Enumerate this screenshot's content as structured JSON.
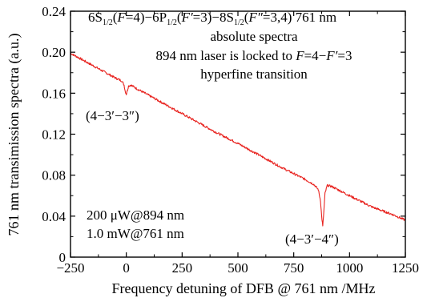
{
  "chart_data": {
    "type": "line",
    "xlabel": "Frequency detuning of DFB @ 761 nm /MHz",
    "ylabel": "761 nm transimission spectra (a.u.)",
    "xlim": [
      -250,
      1250
    ],
    "ylim": [
      0,
      0.24
    ],
    "x_ticks": [
      -250,
      0,
      250,
      500,
      750,
      1000,
      1250
    ],
    "y_ticks": [
      0,
      0.04,
      0.08,
      0.12,
      0.16,
      0.2,
      0.24
    ],
    "x_tick_labels": [
      "−250",
      "0",
      "250",
      "500",
      "750",
      "1000",
      "1250"
    ],
    "y_tick_labels": [
      "0",
      "0.04",
      "0.08",
      "0.12",
      "0.16",
      "0.20",
      "0.24"
    ],
    "grid": false,
    "series": [
      {
        "color": "#e8231f",
        "x": [
          -250,
          -200,
          -150,
          -100,
          -50,
          -20,
          -10,
          -5,
          0,
          5,
          10,
          20,
          50,
          100,
          200,
          300,
          400,
          500,
          600,
          700,
          800,
          840,
          860,
          870,
          875,
          880,
          885,
          890,
          900,
          920,
          1000,
          1100,
          1200,
          1250
        ],
        "y": [
          0.199,
          0.193,
          0.187,
          0.181,
          0.175,
          0.172,
          0.168,
          0.162,
          0.159,
          0.163,
          0.167,
          0.168,
          0.164,
          0.158,
          0.146,
          0.134,
          0.122,
          0.111,
          0.099,
          0.087,
          0.076,
          0.071,
          0.066,
          0.055,
          0.04,
          0.03,
          0.045,
          0.062,
          0.07,
          0.069,
          0.06,
          0.049,
          0.041,
          0.036
        ]
      }
    ],
    "annotations": {
      "header": [
        "6S1/2(F=4)−6P1/2(F′=3)−8S1/2(F″=3,4) 761 nm",
        "absolute spectra",
        "894 nm laser is locked to F=4−F′=3",
        "hyperfine transition"
      ],
      "peak_left": "(4−3′−3″)",
      "peak_right": "(4−3′−4″)",
      "power_1": "200 μW@894 nm",
      "power_2": "1.0 mW@761 nm"
    }
  }
}
